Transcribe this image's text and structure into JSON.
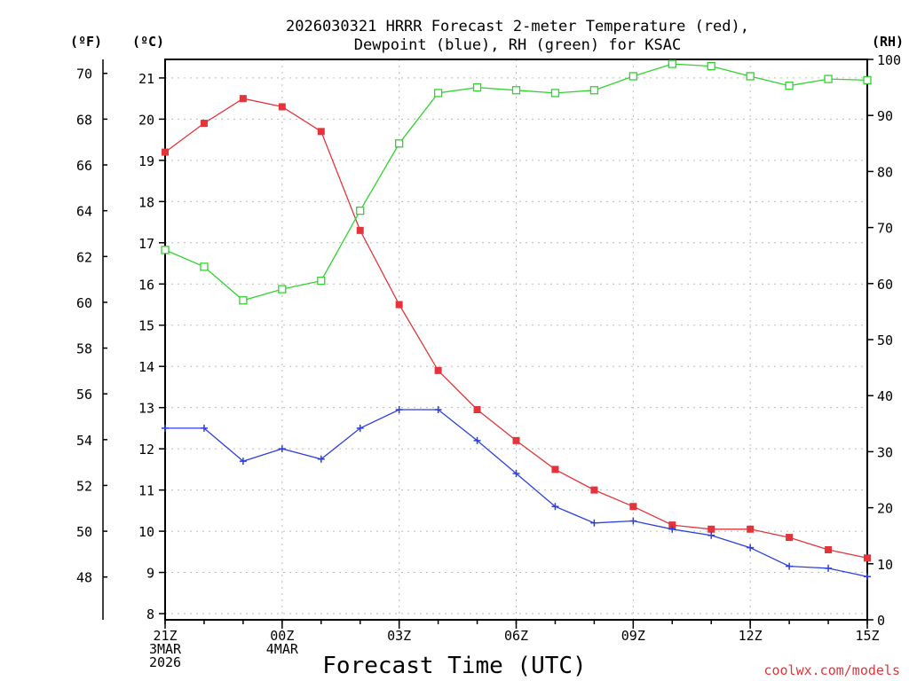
{
  "chart_data": {
    "type": "line",
    "title": [
      "2026030321 HRRR Forecast 2-meter Temperature (red),",
      "Dewpoint (blue), RH (green) for KSAC"
    ],
    "xlabel": "Forecast Time (UTC)",
    "credit": "coolwx.com/models",
    "x": [
      0,
      1,
      2,
      3,
      4,
      5,
      6,
      7,
      8,
      9,
      10,
      11,
      12,
      13,
      14,
      15,
      16,
      17,
      18
    ],
    "x_tick_labels": [
      {
        "pos": 0,
        "lines": [
          "21Z",
          "3MAR",
          "2026"
        ]
      },
      {
        "pos": 3,
        "lines": [
          "00Z",
          "4MAR"
        ]
      },
      {
        "pos": 6,
        "lines": [
          "03Z"
        ]
      },
      {
        "pos": 9,
        "lines": [
          "06Z"
        ]
      },
      {
        "pos": 12,
        "lines": [
          "09Z"
        ]
      },
      {
        "pos": 15,
        "lines": [
          "12Z"
        ]
      },
      {
        "pos": 18,
        "lines": [
          "15Z"
        ]
      }
    ],
    "axes": {
      "fahrenheit": {
        "label": "(ºF)",
        "ticks": [
          48,
          50,
          52,
          54,
          56,
          58,
          60,
          62,
          64,
          66,
          68,
          70
        ]
      },
      "celsius": {
        "label": "(ºC)",
        "range": [
          7.85,
          21.45
        ],
        "ticks": [
          8,
          9,
          10,
          11,
          12,
          13,
          14,
          15,
          16,
          17,
          18,
          19,
          20,
          21
        ]
      },
      "rh": {
        "label": "(RH)",
        "range": [
          0,
          100
        ],
        "ticks": [
          0,
          10,
          20,
          30,
          40,
          50,
          60,
          70,
          80,
          90,
          100
        ]
      }
    },
    "grid": true,
    "series": [
      {
        "name": "2-meter Temperature",
        "axis": "celsius",
        "color": "#e3343b",
        "marker": "filled-square",
        "values": [
          19.2,
          19.9,
          20.5,
          20.3,
          19.7,
          17.3,
          15.5,
          13.9,
          12.95,
          12.2,
          11.5,
          11.0,
          10.6,
          10.15,
          10.05,
          10.05,
          9.85,
          9.55,
          9.35
        ]
      },
      {
        "name": "Dewpoint",
        "axis": "celsius",
        "color": "#2b3fe0",
        "marker": "plus",
        "values": [
          12.5,
          12.5,
          11.7,
          12.0,
          11.75,
          12.5,
          12.95,
          12.95,
          12.2,
          11.4,
          10.6,
          10.2,
          10.25,
          10.05,
          9.9,
          9.6,
          9.15,
          9.1,
          8.9
        ]
      },
      {
        "name": "RH",
        "axis": "rh",
        "color": "#2fd42f",
        "marker": "open-square",
        "values": [
          66,
          63,
          57,
          59,
          60.5,
          73,
          85,
          94,
          95,
          94.5,
          94,
          94.5,
          97,
          99.2,
          98.8,
          97,
          95.3,
          96.5,
          96.3
        ]
      }
    ]
  }
}
